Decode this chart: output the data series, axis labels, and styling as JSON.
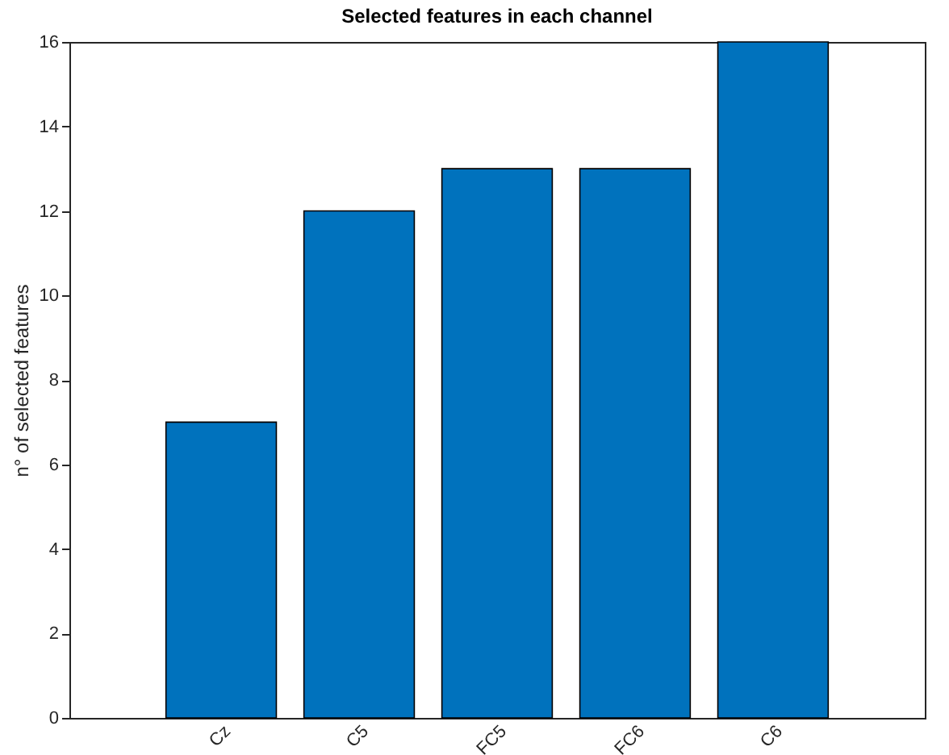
{
  "chart_data": {
    "type": "bar",
    "title": "Selected features in each channel",
    "ylabel": "n° of selected features",
    "categories": [
      "Cz",
      "C5",
      "FC5",
      "FC6",
      "C6"
    ],
    "values": [
      7,
      12,
      13,
      13,
      16
    ],
    "color": "#0072bd",
    "ylim": [
      0,
      16
    ],
    "yticks": [
      0,
      2,
      4,
      6,
      8,
      10,
      12,
      14,
      16
    ],
    "grid": false
  }
}
